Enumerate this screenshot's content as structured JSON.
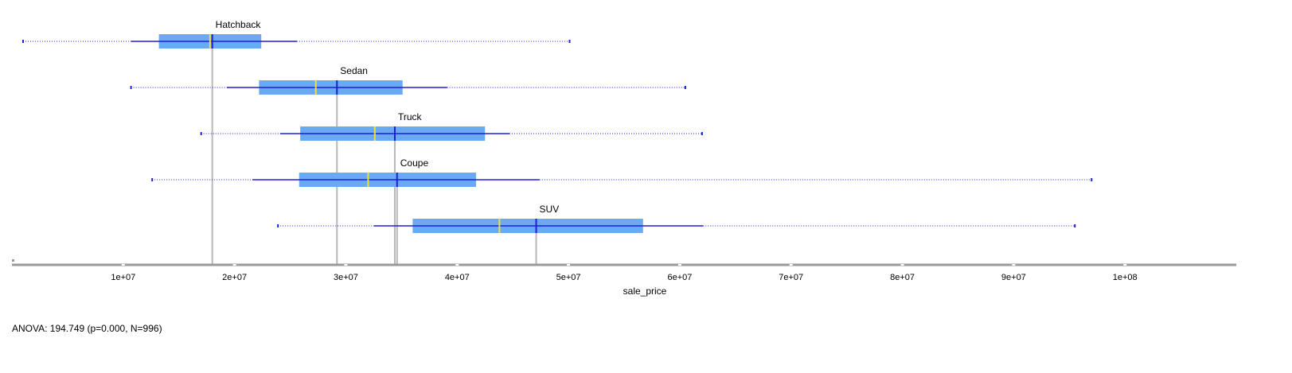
{
  "chart_data": {
    "type": "boxplot",
    "orientation": "horizontal",
    "xlabel": "sale_price",
    "xlim": [
      0,
      110000000
    ],
    "xticks": [
      10000000,
      20000000,
      30000000,
      40000000,
      50000000,
      60000000,
      70000000,
      80000000,
      90000000,
      100000000
    ],
    "xtick_labels": [
      "1e+07",
      "2e+07",
      "3e+07",
      "4e+07",
      "5e+07",
      "6e+07",
      "7e+07",
      "8e+07",
      "9e+07",
      "1e+08"
    ],
    "groups": [
      {
        "name": "Hatchback",
        "min": 1000000,
        "lower_whisker": 10700000,
        "q1": 13200000,
        "median": 17800000,
        "mean": 18000000,
        "q3": 22400000,
        "upper_whisker": 25600000,
        "max": 50100000
      },
      {
        "name": "Sedan",
        "min": 10700000,
        "lower_whisker": 19300000,
        "q1": 22200000,
        "median": 27300000,
        "mean": 29200000,
        "q3": 35100000,
        "upper_whisker": 39100000,
        "max": 60500000
      },
      {
        "name": "Truck",
        "min": 17000000,
        "lower_whisker": 24100000,
        "q1": 25900000,
        "median": 32600000,
        "mean": 34400000,
        "q3": 42500000,
        "upper_whisker": 44700000,
        "max": 62000000
      },
      {
        "name": "Coupe",
        "min": 12600000,
        "lower_whisker": 21600000,
        "q1": 25800000,
        "median": 32000000,
        "mean": 34600000,
        "q3": 41700000,
        "upper_whisker": 47400000,
        "max": 97000000
      },
      {
        "name": "SUV",
        "min": 23900000,
        "lower_whisker": 32500000,
        "q1": 36000000,
        "median": 43800000,
        "mean": 47100000,
        "q3": 56700000,
        "upper_whisker": 62100000,
        "max": 95500000
      }
    ],
    "colors": {
      "box_fill": "#6aa9f4",
      "whisker": "#1f1fd6",
      "median_line": "#f0e040",
      "mean_line": "#1f1fd6",
      "mean_marker_line": "#b8b8b8",
      "axis": "#9a9a9a"
    }
  },
  "stats_text": "ANOVA: 194.749 (p=0.000, N=996)"
}
